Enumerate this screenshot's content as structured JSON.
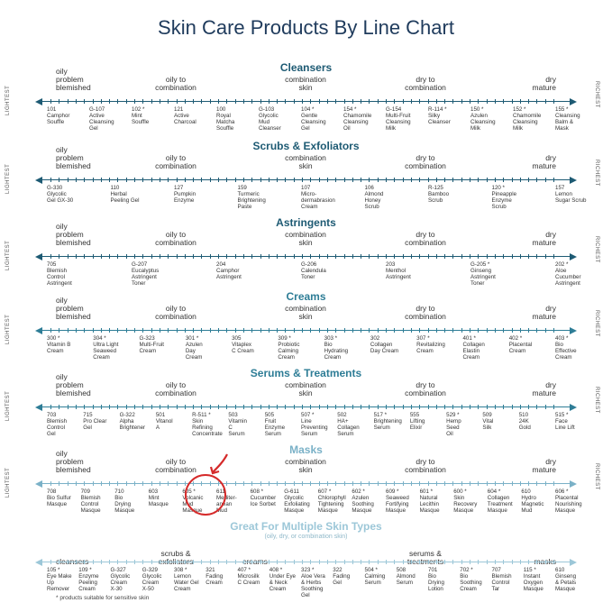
{
  "title": "Skin Care Products By Line Chart",
  "side_labels": {
    "left": "LIGHTEST",
    "right": "RICHEST"
  },
  "colors": {
    "title": "#1f3b5c",
    "dark": "#1d5a73",
    "mid": "#2e7d96",
    "light": "#7ab1c7",
    "lighter": "#9cc7d8",
    "highlight": "#d52a2a"
  },
  "footnote": "* products suitable for sensitive skin",
  "subnote": "(oily, dry, or combination skin)",
  "sections": [
    {
      "title": "Cleansers",
      "bands": [
        {
          "text": "oily\nproblem\nblemished",
          "pos": "left"
        },
        {
          "text": "oily to\ncombination",
          "pos": "c1"
        },
        {
          "text": "combination\nskin",
          "pos": "mid"
        },
        {
          "text": "dry to\ncombination",
          "pos": "c2"
        },
        {
          "text": "dry\nmature",
          "pos": "right"
        }
      ],
      "products": [
        "101\nCamphor\nSouffle",
        "G-107\nActive\nCleansing\nGel",
        "102 *\nMint\nSouffle",
        "121\nActive\nCharcoal",
        "100\nRoyal\nMatcha\nSouffle",
        "G-103\nGlycolic\nMud\nCleanser",
        "104 *\nGentle\nCleansing\nGel",
        "154 *\nChamomile\nCleansing\nOil",
        "G-154\nMulti-Fruit\nCleansing\nMilk",
        "R-114 *\nSilky\nCleanser",
        "150 *\nAzulen\nCleansing\nMilk",
        "152 *\nChamomile\nCleansing\nMilk",
        "155 *\nCleansing\nBalm &\nMask"
      ]
    },
    {
      "title": "Scrubs & Exfoliators",
      "bands": [
        {
          "text": "oily\nproblem\nblemished",
          "pos": "left"
        },
        {
          "text": "oily to\ncombination",
          "pos": "c1"
        },
        {
          "text": "combination\nskin",
          "pos": "mid"
        },
        {
          "text": "dry to\ncombination",
          "pos": "c2"
        },
        {
          "text": "dry\nmature",
          "pos": "right"
        }
      ],
      "products": [
        "G-330\nGlycolic\nGel GX-30",
        "110\nHerbal\nPeeling Gel",
        "127\nPumpkin\nEnzyme",
        "159\nTurmeric\nBrightening\nPaste",
        "107\nMicro-\ndermabrasion\nCream",
        "106\nAlmond\nHoney\nScrub",
        "R-125\nBamboo\nScrub",
        "120 *\nPineapple\nEnzyme\nScrub",
        "157\nLemon\nSugar Scrub"
      ]
    },
    {
      "title": "Astringents",
      "bands": [
        {
          "text": "oily\nproblem\nblemished",
          "pos": "left"
        },
        {
          "text": "oily to\ncombination",
          "pos": "c1"
        },
        {
          "text": "combination\nskin",
          "pos": "mid"
        },
        {
          "text": "dry to\ncombination",
          "pos": "c2"
        },
        {
          "text": "dry\nmature",
          "pos": "right"
        }
      ],
      "products": [
        "705\nBlemish\nControl\nAstringent",
        "G-207\nEucalyptus\nAstringent\nToner",
        "204\nCamphor\nAstringent",
        "G-206\nCalendula\nToner",
        "203\nMenthol\nAstringent",
        "G-205 *\nGinseng\nAstringent\nToner",
        "202 *\nAloe\nCucumber\nAstringent"
      ]
    },
    {
      "title": "Creams",
      "bands": [
        {
          "text": "oily\nproblem\nblemished",
          "pos": "left"
        },
        {
          "text": "oily to\ncombination",
          "pos": "c1"
        },
        {
          "text": "combination\nskin",
          "pos": "mid"
        },
        {
          "text": "dry to\ncombination",
          "pos": "c2"
        },
        {
          "text": "dry\nmature",
          "pos": "right"
        }
      ],
      "products": [
        "300 *\nVitamin B\nCream",
        "304 *\nUltra Light\nSeaweed\nCream",
        "G-323\nMulti-Fruit\nCream",
        "301 *\nAzulen\nDay\nCream",
        "305\nVitaplex\nC Cream",
        "309 *\nProbiotic\nCalming\nCream",
        "303 *\nBio\nHydrating\nCream",
        "302\nCollagen\nDay Cream",
        "307 *\nRevitalizing\nCream",
        "401 *\nCollagen\nElastin\nCream",
        "402 *\nPlacental\nCream",
        "403 *\nBio\nEffective\nCream"
      ]
    },
    {
      "title": "Serums & Treatments",
      "bands": [
        {
          "text": "oily\nproblem\nblemished",
          "pos": "left"
        },
        {
          "text": "oily to\ncombination",
          "pos": "c1"
        },
        {
          "text": "combination\nskin",
          "pos": "mid"
        },
        {
          "text": "dry to\ncombination",
          "pos": "c2"
        },
        {
          "text": "dry\nmature",
          "pos": "right"
        }
      ],
      "products": [
        "703\nBlemish\nControl\nGel",
        "715\nPro Clear\nGel",
        "G-322\nAlpha\nBrightener",
        "501\nVitanol\nA",
        "R-511 *\nSkin\nRefining\nConcentrate",
        "503\nVitamin\nC\nSerum",
        "505\nFruit\nEnzyme\nSerum",
        "507 *\nLine\nPreventing\nSerum",
        "502\nHA+\nCollagen\nSerum",
        "517 *\nBrightening\nSerum",
        "555\nLifting\nElixir",
        "529 *\nHemp\nSeed\nOil",
        "509\nVital\nSilk",
        "510\n24K\nGold",
        "515 *\nFace\nLine Lift"
      ]
    },
    {
      "title": "Masks",
      "bands": [
        {
          "text": "oily\nproblem\nblemished",
          "pos": "left"
        },
        {
          "text": "oily to\ncombination",
          "pos": "c1"
        },
        {
          "text": "combination\nskin",
          "pos": "mid"
        },
        {
          "text": "dry to\ncombination",
          "pos": "c2"
        },
        {
          "text": "dry\nmature",
          "pos": "right"
        }
      ],
      "products": [
        "708\nBio Sulfur\nMasque",
        "709\nBlemish\nControl\nMasque",
        "710\nBio\nDrying\nMasque",
        "603\nMint\nMasque",
        "605 *\nVolcanic\nMud\nMasque",
        "611\nMediter-\nanean\nMud",
        "608 *\nCucumber\nIce Sorbet",
        "G-611\nGlycolic\nExfoliating\nMasque",
        "607 *\nChlorophyll\nTightening\nMasque",
        "602 *\nAzulen\nSoothing\nMasque",
        "609 *\nSeaweed\nFortifying\nMasque",
        "601 *\nNatural\nLecithin\nMasque",
        "600 *\nSkin\nRecovery\nMasque",
        "604 *\nCollagen\nTreatment\nMasque",
        "610\nHydro\nMagnetic\nMud",
        "606 *\nPlacental\nNourishing\nMasque"
      ]
    },
    {
      "title": "Great For Multiple Skin Types",
      "bands": [
        {
          "text": "cleansers",
          "pos": "left"
        },
        {
          "text": "scrubs &\nexfoliators",
          "pos": "c1"
        },
        {
          "text": "creams",
          "pos": "creams"
        },
        {
          "text": "serums &\ntreatments",
          "pos": "c2"
        },
        {
          "text": "masks",
          "pos": "right"
        }
      ],
      "products": [
        "105 *\nEye Make\nUp\nRemover",
        "109 *\nEnzyme\nPeeling\nCream",
        "G-327\nGlycolic\nCream\nX-30",
        "G-329\nGlycolic\nCream\nX-50",
        "308 *\nLemon\nWater Gel\nCream",
        "321\nFading\nCream",
        "407 *\nMicrosilk\nC Cream",
        "408 *\nUnder Eye\n& Neck\nCream",
        "323 *\nAloe Vera\n& Herbs\nSoothing\nGel",
        "322\nFading\nGel",
        "504 *\nCalming\nSerum",
        "508\nAlmond\nSerum",
        "701\nBio\nDrying\nLotion",
        "702 *\nBio\nSoothing\nCream",
        "707\nBlemish\nControl\nTar",
        "115 *\nInstant\nOxygen\nMasque",
        "610\nGinseng\n& Petals\nMasque"
      ]
    }
  ]
}
